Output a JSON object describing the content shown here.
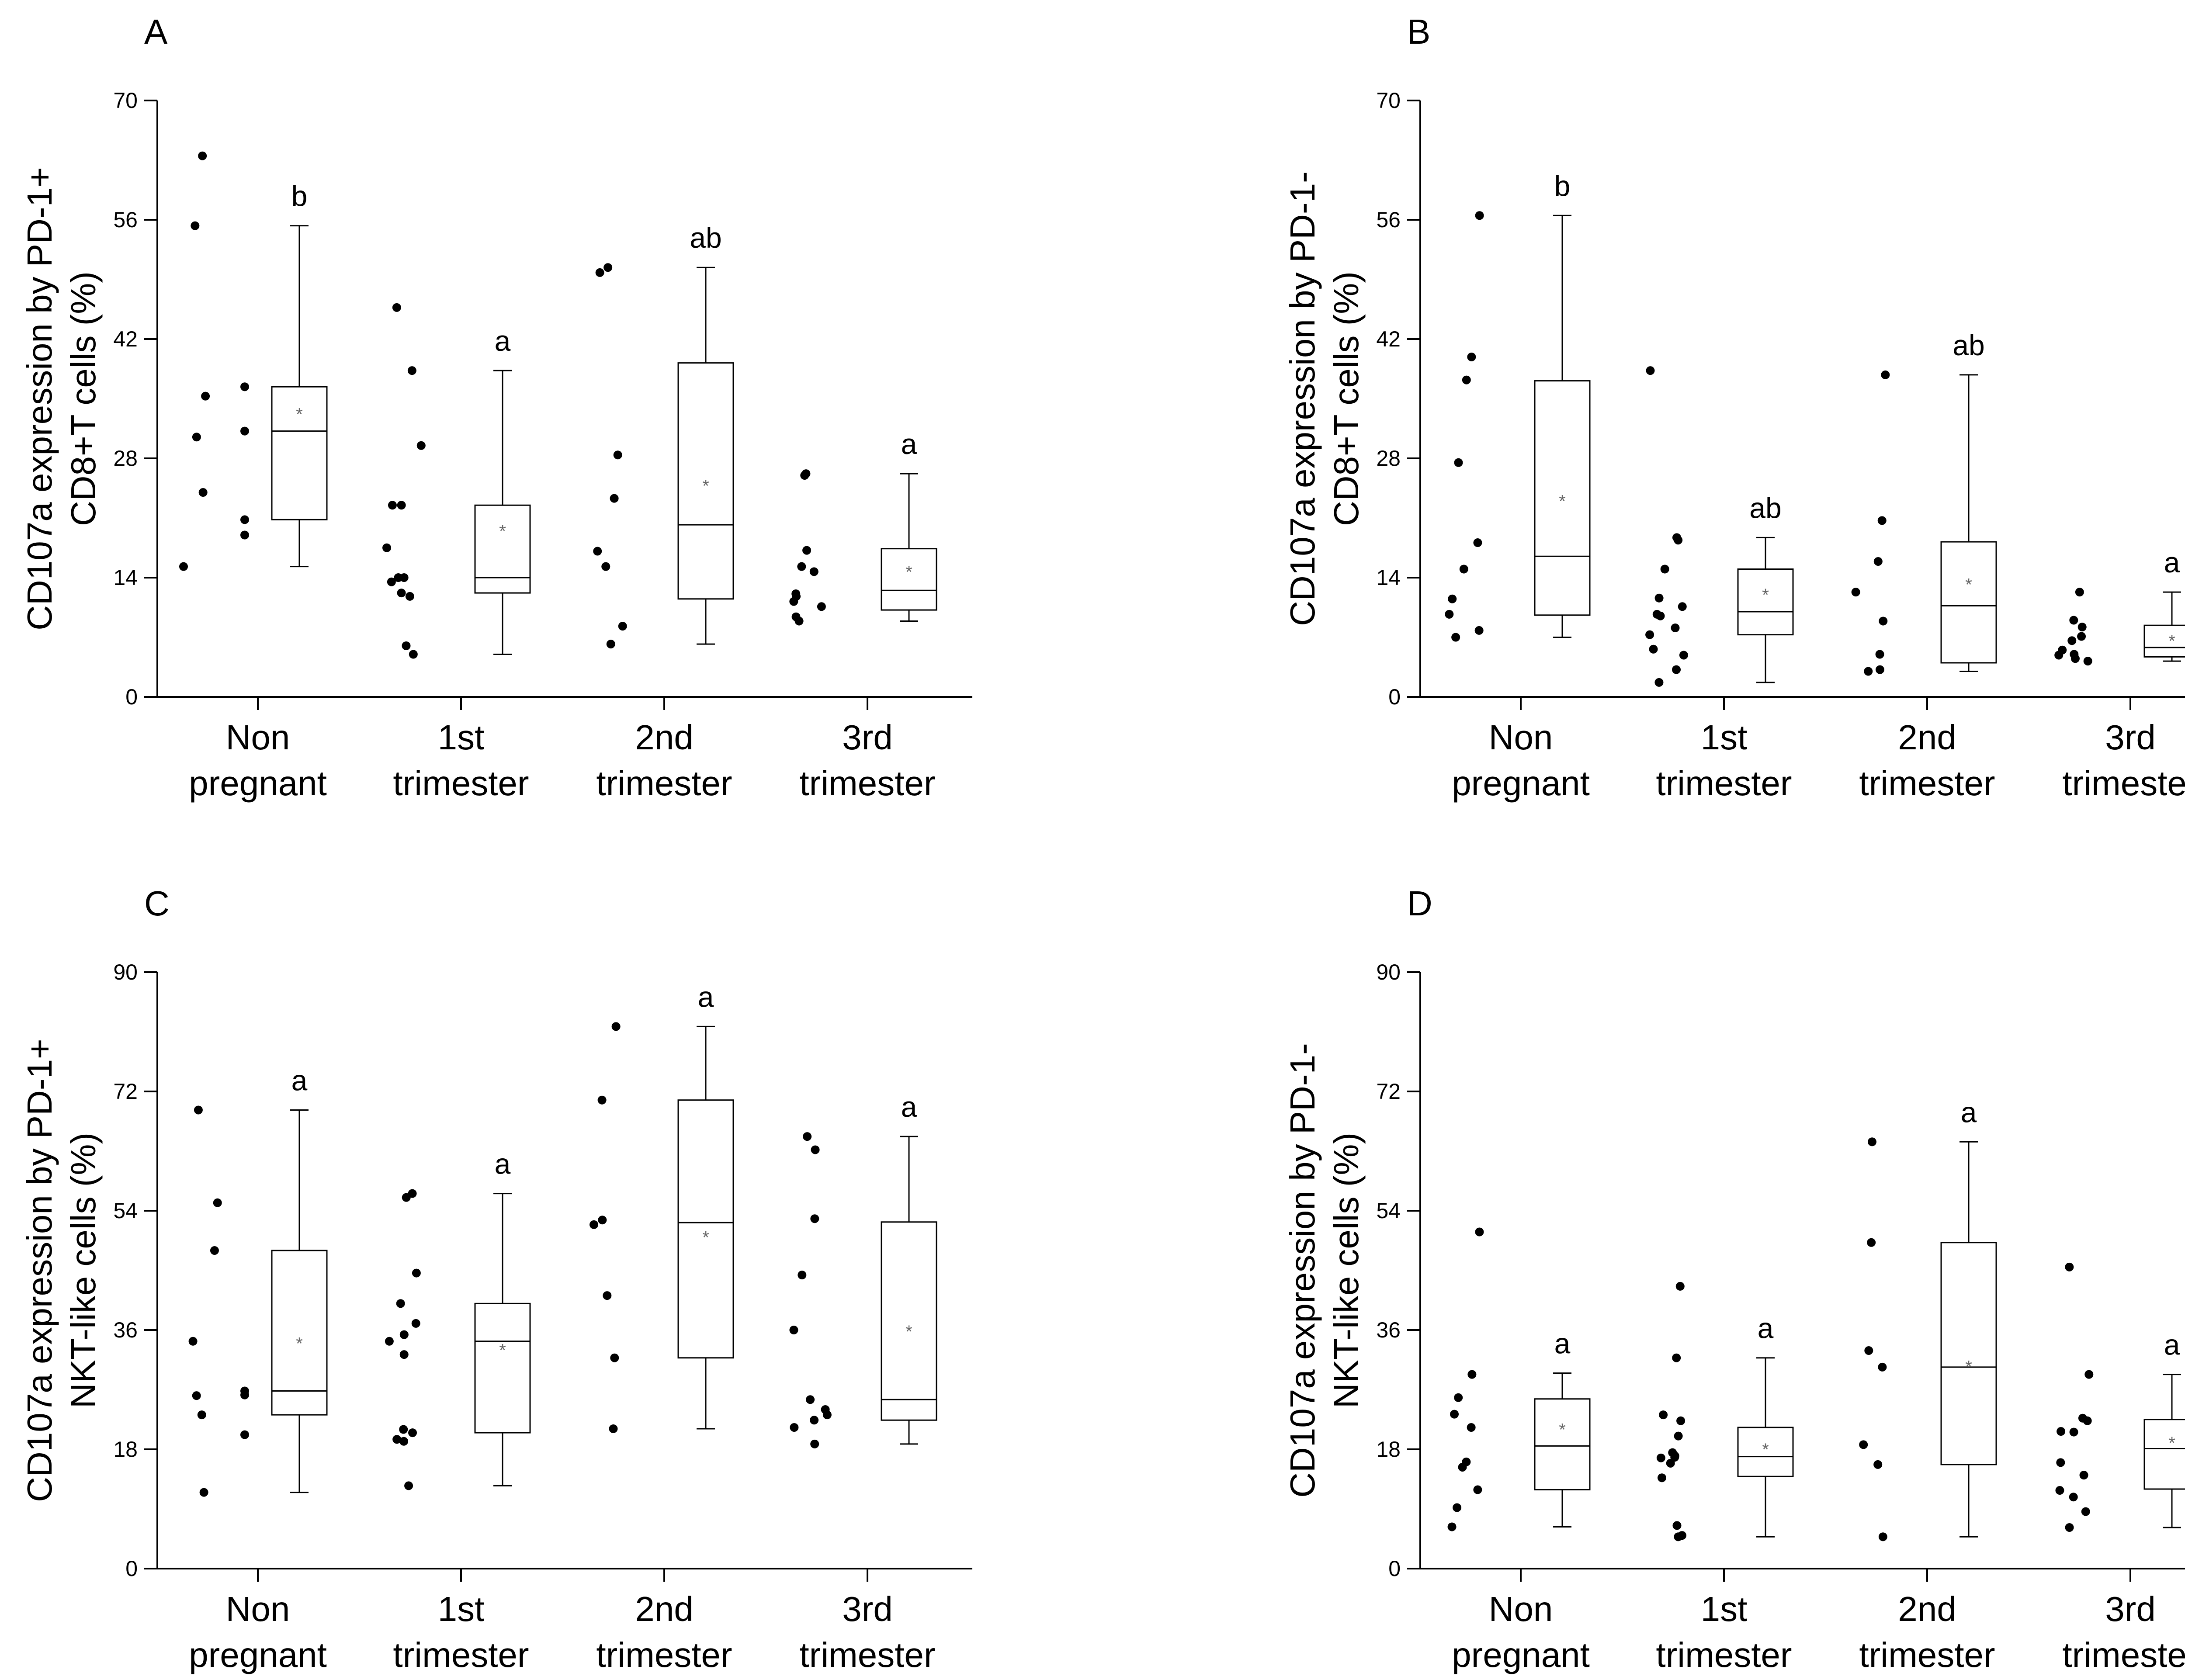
{
  "colors": {
    "points": "#000000",
    "axes": "#000000",
    "box": "#000000",
    "mean": "#666666",
    "background": "#ffffff"
  },
  "chart_data": [
    {
      "panel": "A",
      "type": "box",
      "ylabel": [
        "CD107a expression by PD-1+",
        "CD8+T cells (%)"
      ],
      "ylim": [
        0,
        70
      ],
      "yticks": [
        0,
        14,
        28,
        42,
        56,
        70
      ],
      "categories": [
        [
          "Non",
          "pregnant"
        ],
        [
          "1st",
          "trimester"
        ],
        [
          "2nd",
          "trimester"
        ],
        [
          "3rd",
          "trimester"
        ]
      ],
      "groups": [
        {
          "points": [
            15.3,
            19,
            20.8,
            24,
            30.5,
            31.2,
            35.3,
            36.4,
            55.3,
            63.5
          ],
          "points_right": [
            false,
            true,
            true,
            false,
            false,
            true,
            false,
            true,
            false,
            false
          ],
          "q1": 20.8,
          "median": 31.2,
          "q3": 36.4,
          "whisker_low": 15.3,
          "whisker_high": 55.3,
          "mean": 33.2,
          "letter": "b"
        },
        {
          "points": [
            5,
            6,
            11.8,
            12.2,
            13.5,
            14,
            14,
            17.5,
            22.5,
            22.5,
            29.5,
            38.3,
            45.7
          ],
          "q1": 12.2,
          "median": 14,
          "q3": 22.5,
          "whisker_low": 5,
          "whisker_high": 38.3,
          "mean": 19.5,
          "letter": "a"
        },
        {
          "points": [
            6.2,
            8.3,
            15.3,
            17.1,
            23.3,
            28.4,
            49.8,
            50.4
          ],
          "q1": 11.5,
          "median": 20.2,
          "q3": 39.2,
          "whisker_low": 6.2,
          "whisker_high": 50.4,
          "mean": 24.8,
          "letter": "ab"
        },
        {
          "points": [
            8.9,
            9.4,
            10.6,
            11.2,
            11.8,
            12.1,
            14.7,
            15.3,
            17.2,
            26,
            26.2
          ],
          "q1": 10.2,
          "median": 12.5,
          "q3": 17.4,
          "whisker_low": 8.9,
          "whisker_high": 26.2,
          "mean": 14.7,
          "letter": "a"
        }
      ]
    },
    {
      "panel": "B",
      "type": "box",
      "ylabel": [
        "CD107a expression by PD-1-",
        "CD8+T cells (%)"
      ],
      "ylim": [
        0,
        70
      ],
      "yticks": [
        0,
        14,
        28,
        42,
        56,
        70
      ],
      "categories": [
        [
          "Non",
          "pregnant"
        ],
        [
          "1st",
          "trimester"
        ],
        [
          "2nd",
          "trimester"
        ],
        [
          "3rd",
          "trimester"
        ]
      ],
      "groups": [
        {
          "points": [
            7,
            7.8,
            9.7,
            11.5,
            15,
            18.1,
            27.5,
            37.2,
            39.9,
            56.5
          ],
          "q1": 9.6,
          "median": 16.5,
          "q3": 37.1,
          "whisker_low": 7,
          "whisker_high": 56.5,
          "mean": 23,
          "letter": "b"
        },
        {
          "points": [
            1.7,
            3.2,
            4.9,
            5.6,
            7.3,
            8.1,
            9.5,
            9.7,
            10.6,
            11.6,
            15,
            18.4,
            18.7,
            38.3
          ],
          "q1": 7.3,
          "median": 10,
          "q3": 15,
          "whisker_low": 1.7,
          "whisker_high": 18.7,
          "mean": 12,
          "letter": "ab"
        },
        {
          "points": [
            3,
            3.2,
            5,
            8.9,
            12.3,
            15.9,
            20.7,
            37.8
          ],
          "q1": 4,
          "median": 10.7,
          "q3": 18.2,
          "whisker_low": 3,
          "whisker_high": 37.8,
          "mean": 13.2,
          "letter": "ab"
        },
        {
          "points": [
            4.2,
            4.5,
            4.9,
            5,
            5.5,
            6.6,
            7.1,
            8.2,
            9,
            12.3
          ],
          "q1": 4.7,
          "median": 5.8,
          "q3": 8.4,
          "whisker_low": 4.2,
          "whisker_high": 12.3,
          "mean": 6.6,
          "letter": "a"
        }
      ]
    },
    {
      "panel": "C",
      "type": "box",
      "ylabel": [
        "CD107a expression by PD-1+",
        "NKT-like cells (%)"
      ],
      "ylim": [
        0,
        90
      ],
      "yticks": [
        0,
        18,
        36,
        54,
        72,
        90
      ],
      "categories": [
        [
          "Non",
          "pregnant"
        ],
        [
          "1st",
          "trimester"
        ],
        [
          "2nd",
          "trimester"
        ],
        [
          "3rd",
          "trimester"
        ]
      ],
      "groups": [
        {
          "points": [
            11.5,
            20.2,
            23.2,
            26.1,
            26.2,
            26.8,
            34.3,
            48,
            55.2,
            69.2
          ],
          "points_right": [
            false,
            true,
            false,
            false,
            true,
            true,
            false,
            false,
            false,
            false
          ],
          "q1": 23.2,
          "median": 26.8,
          "q3": 48,
          "whisker_low": 11.5,
          "whisker_high": 69.2,
          "mean": 34,
          "letter": "a"
        },
        {
          "points": [
            12.5,
            19.2,
            19.5,
            20.5,
            21,
            32.3,
            34.3,
            35.3,
            37,
            40,
            44.6,
            56,
            56.6
          ],
          "q1": 20.5,
          "median": 34.3,
          "q3": 40,
          "whisker_low": 12.5,
          "whisker_high": 56.6,
          "mean": 33,
          "letter": "a"
        },
        {
          "points": [
            21.1,
            31.8,
            41.2,
            51.9,
            52.6,
            70.7,
            81.8
          ],
          "q1": 31.8,
          "median": 52.2,
          "q3": 70.7,
          "whisker_low": 21.1,
          "whisker_high": 81.8,
          "mean": 50,
          "letter": "a"
        },
        {
          "points": [
            18.8,
            21.3,
            22.4,
            23.2,
            24,
            25.5,
            36,
            44.3,
            52.8,
            63.2,
            65.2
          ],
          "q1": 22.4,
          "median": 25.5,
          "q3": 52.3,
          "whisker_low": 18.8,
          "whisker_high": 65.2,
          "mean": 35.8,
          "letter": "a"
        }
      ]
    },
    {
      "panel": "D",
      "type": "box",
      "ylabel": [
        "CD107a expression by PD-1-",
        "NKT-like cells (%)"
      ],
      "ylim": [
        0,
        90
      ],
      "yticks": [
        0,
        18,
        36,
        54,
        72,
        90
      ],
      "categories": [
        [
          "Non",
          "pregnant"
        ],
        [
          "1st",
          "trimester"
        ],
        [
          "2nd",
          "trimester"
        ],
        [
          "3rd",
          "trimester"
        ]
      ],
      "groups": [
        {
          "points": [
            6.3,
            9.2,
            11.9,
            15.3,
            16.1,
            21.3,
            23.3,
            25.8,
            29.3,
            50.8
          ],
          "q1": 11.9,
          "median": 18.5,
          "q3": 25.6,
          "whisker_low": 6.3,
          "whisker_high": 29.5,
          "mean": 21,
          "letter": "a"
        },
        {
          "points": [
            4.8,
            5,
            6.5,
            13.7,
            15.9,
            16.7,
            16.8,
            17,
            17.5,
            20,
            22.3,
            23.2,
            31.8,
            42.6
          ],
          "q1": 13.9,
          "median": 16.9,
          "q3": 21.3,
          "whisker_low": 4.8,
          "whisker_high": 31.8,
          "mean": 18,
          "letter": "a"
        },
        {
          "points": [
            4.8,
            15.7,
            18.7,
            30.4,
            32.9,
            49.2,
            64.4
          ],
          "q1": 15.7,
          "median": 30.4,
          "q3": 49.2,
          "whisker_low": 4.8,
          "whisker_high": 64.4,
          "mean": 30.5,
          "letter": "a"
        },
        {
          "points": [
            6.2,
            8.6,
            10.8,
            11.8,
            14.1,
            16,
            20.6,
            20.7,
            22.3,
            22.7,
            29.3,
            45.5
          ],
          "q1": 12,
          "median": 18.1,
          "q3": 22.5,
          "whisker_low": 6.2,
          "whisker_high": 29.3,
          "mean": 19,
          "letter": "a"
        }
      ]
    }
  ]
}
